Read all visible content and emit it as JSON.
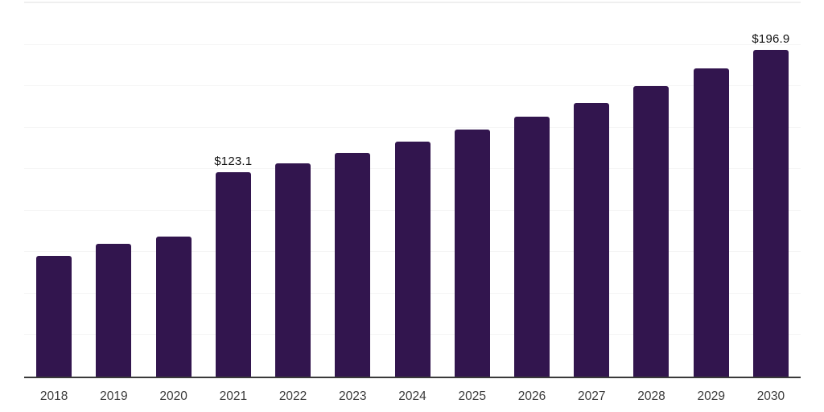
{
  "chart": {
    "bar_color": "#32154e",
    "axis_color": "#3a3a3a",
    "gridline_color": "#f5f5f5",
    "top_border_color": "#efefef",
    "value_label_color": "#111111",
    "tick_label_color": "#3b3b3b",
    "background_color": "#ffffff"
  },
  "chart_data": {
    "type": "bar",
    "title": "",
    "xlabel": "",
    "ylabel": "",
    "categories": [
      "2018",
      "2019",
      "2020",
      "2021",
      "2022",
      "2023",
      "2024",
      "2025",
      "2026",
      "2027",
      "2028",
      "2029",
      "2030"
    ],
    "values": [
      72.8,
      80.2,
      84.3,
      123.1,
      128.7,
      134.6,
      141.5,
      148.7,
      156.7,
      165.1,
      175.1,
      185.5,
      196.9
    ],
    "point_labels": [
      "",
      "",
      "",
      "$123.1",
      "",
      "",
      "",
      "",
      "",
      "",
      "",
      "",
      "$196.9"
    ],
    "currency_prefix": "$",
    "ylim": [
      0,
      225
    ],
    "grid_step": 25,
    "grid": true,
    "y_axis_ticks_visible": false,
    "legend": false,
    "bar_color": "#32154e"
  }
}
